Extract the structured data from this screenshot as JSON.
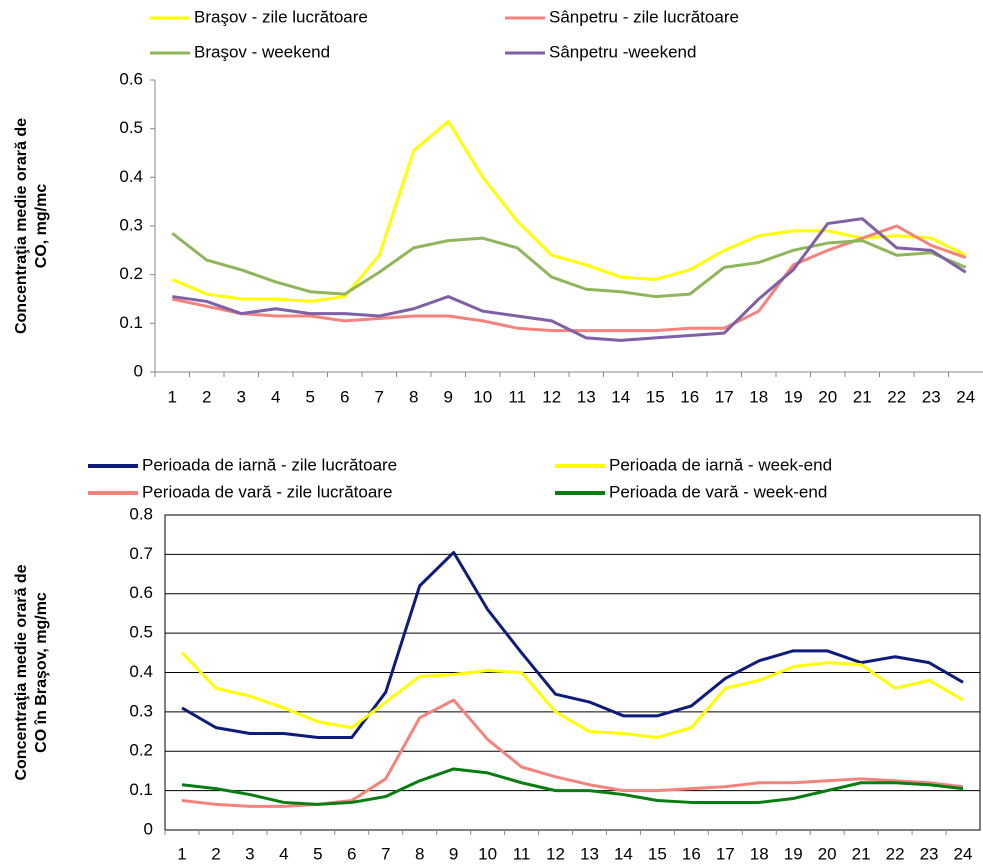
{
  "chart_data": [
    {
      "type": "line",
      "ylabel": [
        "Concentraţia medie orară de",
        "CO, mg/mc"
      ],
      "categories": [
        "1",
        "2",
        "3",
        "4",
        "5",
        "6",
        "7",
        "8",
        "9",
        "10",
        "11",
        "12",
        "13",
        "14",
        "15",
        "16",
        "17",
        "18",
        "19",
        "20",
        "21",
        "22",
        "23",
        "24"
      ],
      "ylim": [
        0,
        0.6
      ],
      "yticks": [
        0,
        0.1,
        0.2,
        0.3,
        0.4,
        0.5,
        0.6
      ],
      "grid": false,
      "series": [
        {
          "name": "Braşov - zile lucrătoare",
          "color": "#ffff00",
          "values": [
            0.19,
            0.16,
            0.15,
            0.15,
            0.145,
            0.155,
            0.24,
            0.455,
            0.515,
            0.4,
            0.31,
            0.24,
            0.22,
            0.195,
            0.19,
            0.21,
            0.25,
            0.28,
            0.29,
            0.29,
            0.275,
            0.28,
            0.275,
            0.24
          ]
        },
        {
          "name": "Sânpetru - zile lucrătoare",
          "color": "#f4837d",
          "values": [
            0.15,
            0.135,
            0.12,
            0.115,
            0.115,
            0.105,
            0.11,
            0.115,
            0.115,
            0.105,
            0.09,
            0.085,
            0.085,
            0.085,
            0.085,
            0.09,
            0.09,
            0.125,
            0.22,
            0.25,
            0.275,
            0.3,
            0.26,
            0.235
          ]
        },
        {
          "name": "Braşov - weekend",
          "color": "#8fb65a",
          "values": [
            0.285,
            0.23,
            0.21,
            0.185,
            0.165,
            0.16,
            0.205,
            0.255,
            0.27,
            0.275,
            0.255,
            0.195,
            0.17,
            0.165,
            0.155,
            0.16,
            0.215,
            0.225,
            0.25,
            0.265,
            0.27,
            0.24,
            0.245,
            0.215
          ]
        },
        {
          "name": "Sânpetru -weekend",
          "color": "#7f5fa5",
          "values": [
            0.155,
            0.145,
            0.12,
            0.13,
            0.12,
            0.12,
            0.115,
            0.13,
            0.155,
            0.125,
            0.115,
            0.105,
            0.07,
            0.065,
            0.07,
            0.075,
            0.08,
            0.15,
            0.21,
            0.305,
            0.315,
            0.255,
            0.25,
            0.205
          ]
        }
      ]
    },
    {
      "type": "line",
      "ylabel": [
        "Concentraţia medie orară de",
        "CO în Braşov, mg/mc"
      ],
      "categories": [
        "1",
        "2",
        "3",
        "4",
        "5",
        "6",
        "7",
        "8",
        "9",
        "10",
        "11",
        "12",
        "13",
        "14",
        "15",
        "16",
        "17",
        "18",
        "19",
        "20",
        "21",
        "22",
        "23",
        "24"
      ],
      "ylim": [
        0,
        0.8
      ],
      "yticks": [
        0,
        0.1,
        0.2,
        0.3,
        0.4,
        0.5,
        0.6,
        0.7,
        0.8
      ],
      "grid": true,
      "series": [
        {
          "name": "Perioada de iarnă - zile lucrătoare",
          "color": "#0d1b7a",
          "values": [
            0.31,
            0.26,
            0.245,
            0.245,
            0.235,
            0.235,
            0.35,
            0.62,
            0.705,
            0.56,
            0.45,
            0.345,
            0.325,
            0.29,
            0.29,
            0.315,
            0.385,
            0.43,
            0.455,
            0.455,
            0.425,
            0.44,
            0.425,
            0.375
          ]
        },
        {
          "name": "Perioada de iarnă - week-end",
          "color": "#ffff00",
          "values": [
            0.45,
            0.36,
            0.34,
            0.31,
            0.275,
            0.26,
            0.325,
            0.39,
            0.395,
            0.405,
            0.4,
            0.3,
            0.25,
            0.245,
            0.235,
            0.26,
            0.36,
            0.38,
            0.415,
            0.425,
            0.42,
            0.36,
            0.38,
            0.33
          ]
        },
        {
          "name": "Perioada de vară - zile lucrătoare",
          "color": "#f4837d",
          "values": [
            0.075,
            0.065,
            0.06,
            0.06,
            0.065,
            0.075,
            0.13,
            0.285,
            0.33,
            0.23,
            0.16,
            0.135,
            0.115,
            0.1,
            0.1,
            0.105,
            0.11,
            0.12,
            0.12,
            0.125,
            0.13,
            0.125,
            0.12,
            0.11
          ]
        },
        {
          "name": "Perioada de vară - week-end",
          "color": "#0a7d12",
          "values": [
            0.115,
            0.105,
            0.09,
            0.07,
            0.065,
            0.07,
            0.085,
            0.125,
            0.155,
            0.145,
            0.12,
            0.1,
            0.1,
            0.09,
            0.075,
            0.07,
            0.07,
            0.07,
            0.08,
            0.1,
            0.12,
            0.12,
            0.115,
            0.105
          ]
        }
      ]
    }
  ]
}
